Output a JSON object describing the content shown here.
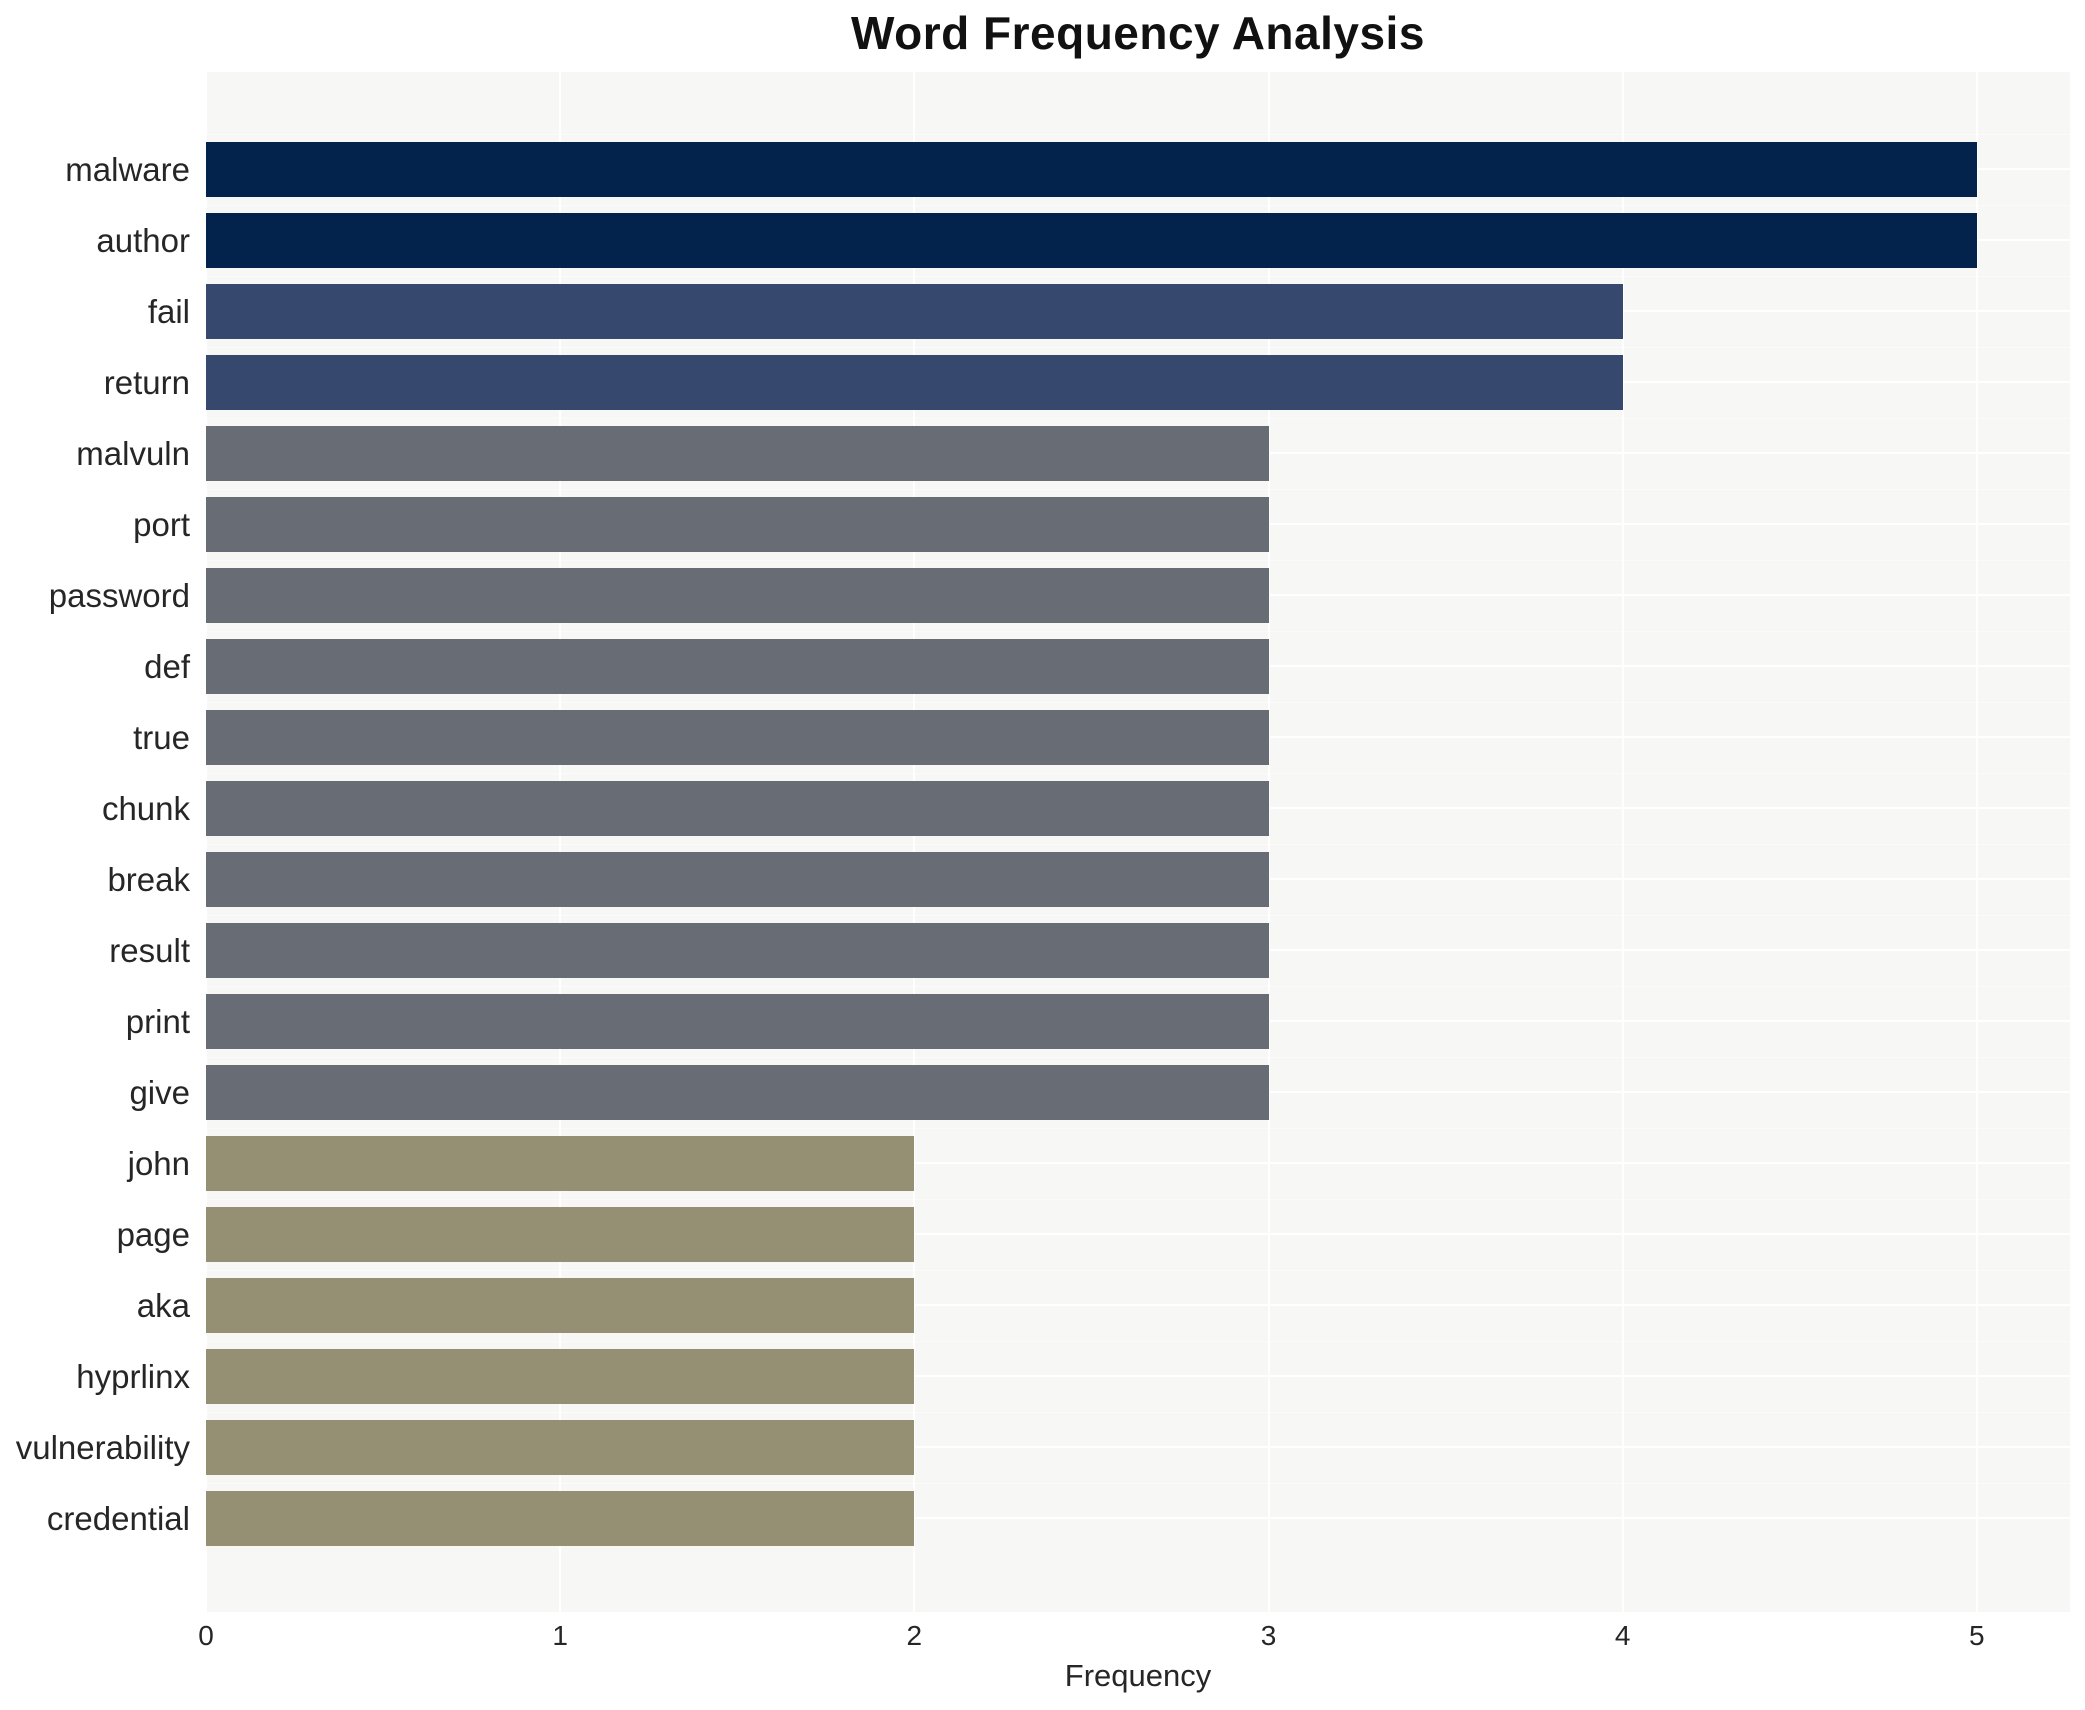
{
  "title": "Word Frequency Analysis",
  "chart_data": {
    "type": "bar",
    "orientation": "horizontal",
    "title": "Word Frequency Analysis",
    "xlabel": "Frequency",
    "ylabel": "",
    "categories": [
      "malware",
      "author",
      "fail",
      "return",
      "malvuln",
      "port",
      "password",
      "def",
      "true",
      "chunk",
      "break",
      "result",
      "print",
      "give",
      "john",
      "page",
      "aka",
      "hyprlinx",
      "vulnerability",
      "credential"
    ],
    "values": [
      5,
      5,
      4,
      4,
      3,
      3,
      3,
      3,
      3,
      3,
      3,
      3,
      3,
      3,
      2,
      2,
      2,
      2,
      2,
      2
    ],
    "bar_colors": [
      "#03234d",
      "#03234d",
      "#36486e",
      "#36486e",
      "#686c74",
      "#686c74",
      "#686c74",
      "#686c74",
      "#686c74",
      "#686c74",
      "#686c74",
      "#686c74",
      "#686c74",
      "#686c74",
      "#958f74",
      "#958f74",
      "#958f74",
      "#958f74",
      "#958f74",
      "#958f74"
    ],
    "xticks": [
      0,
      1,
      2,
      3,
      4,
      5
    ],
    "xlim": [
      0,
      5.263
    ],
    "grid": "major white gridlines (vertical at ticks, horizontal at category centers)",
    "legend": "none",
    "panel_bg": "#f7f7f5",
    "page_bg": "#ffffff",
    "grid_color": "#ffffff",
    "text_color": "#262626"
  }
}
